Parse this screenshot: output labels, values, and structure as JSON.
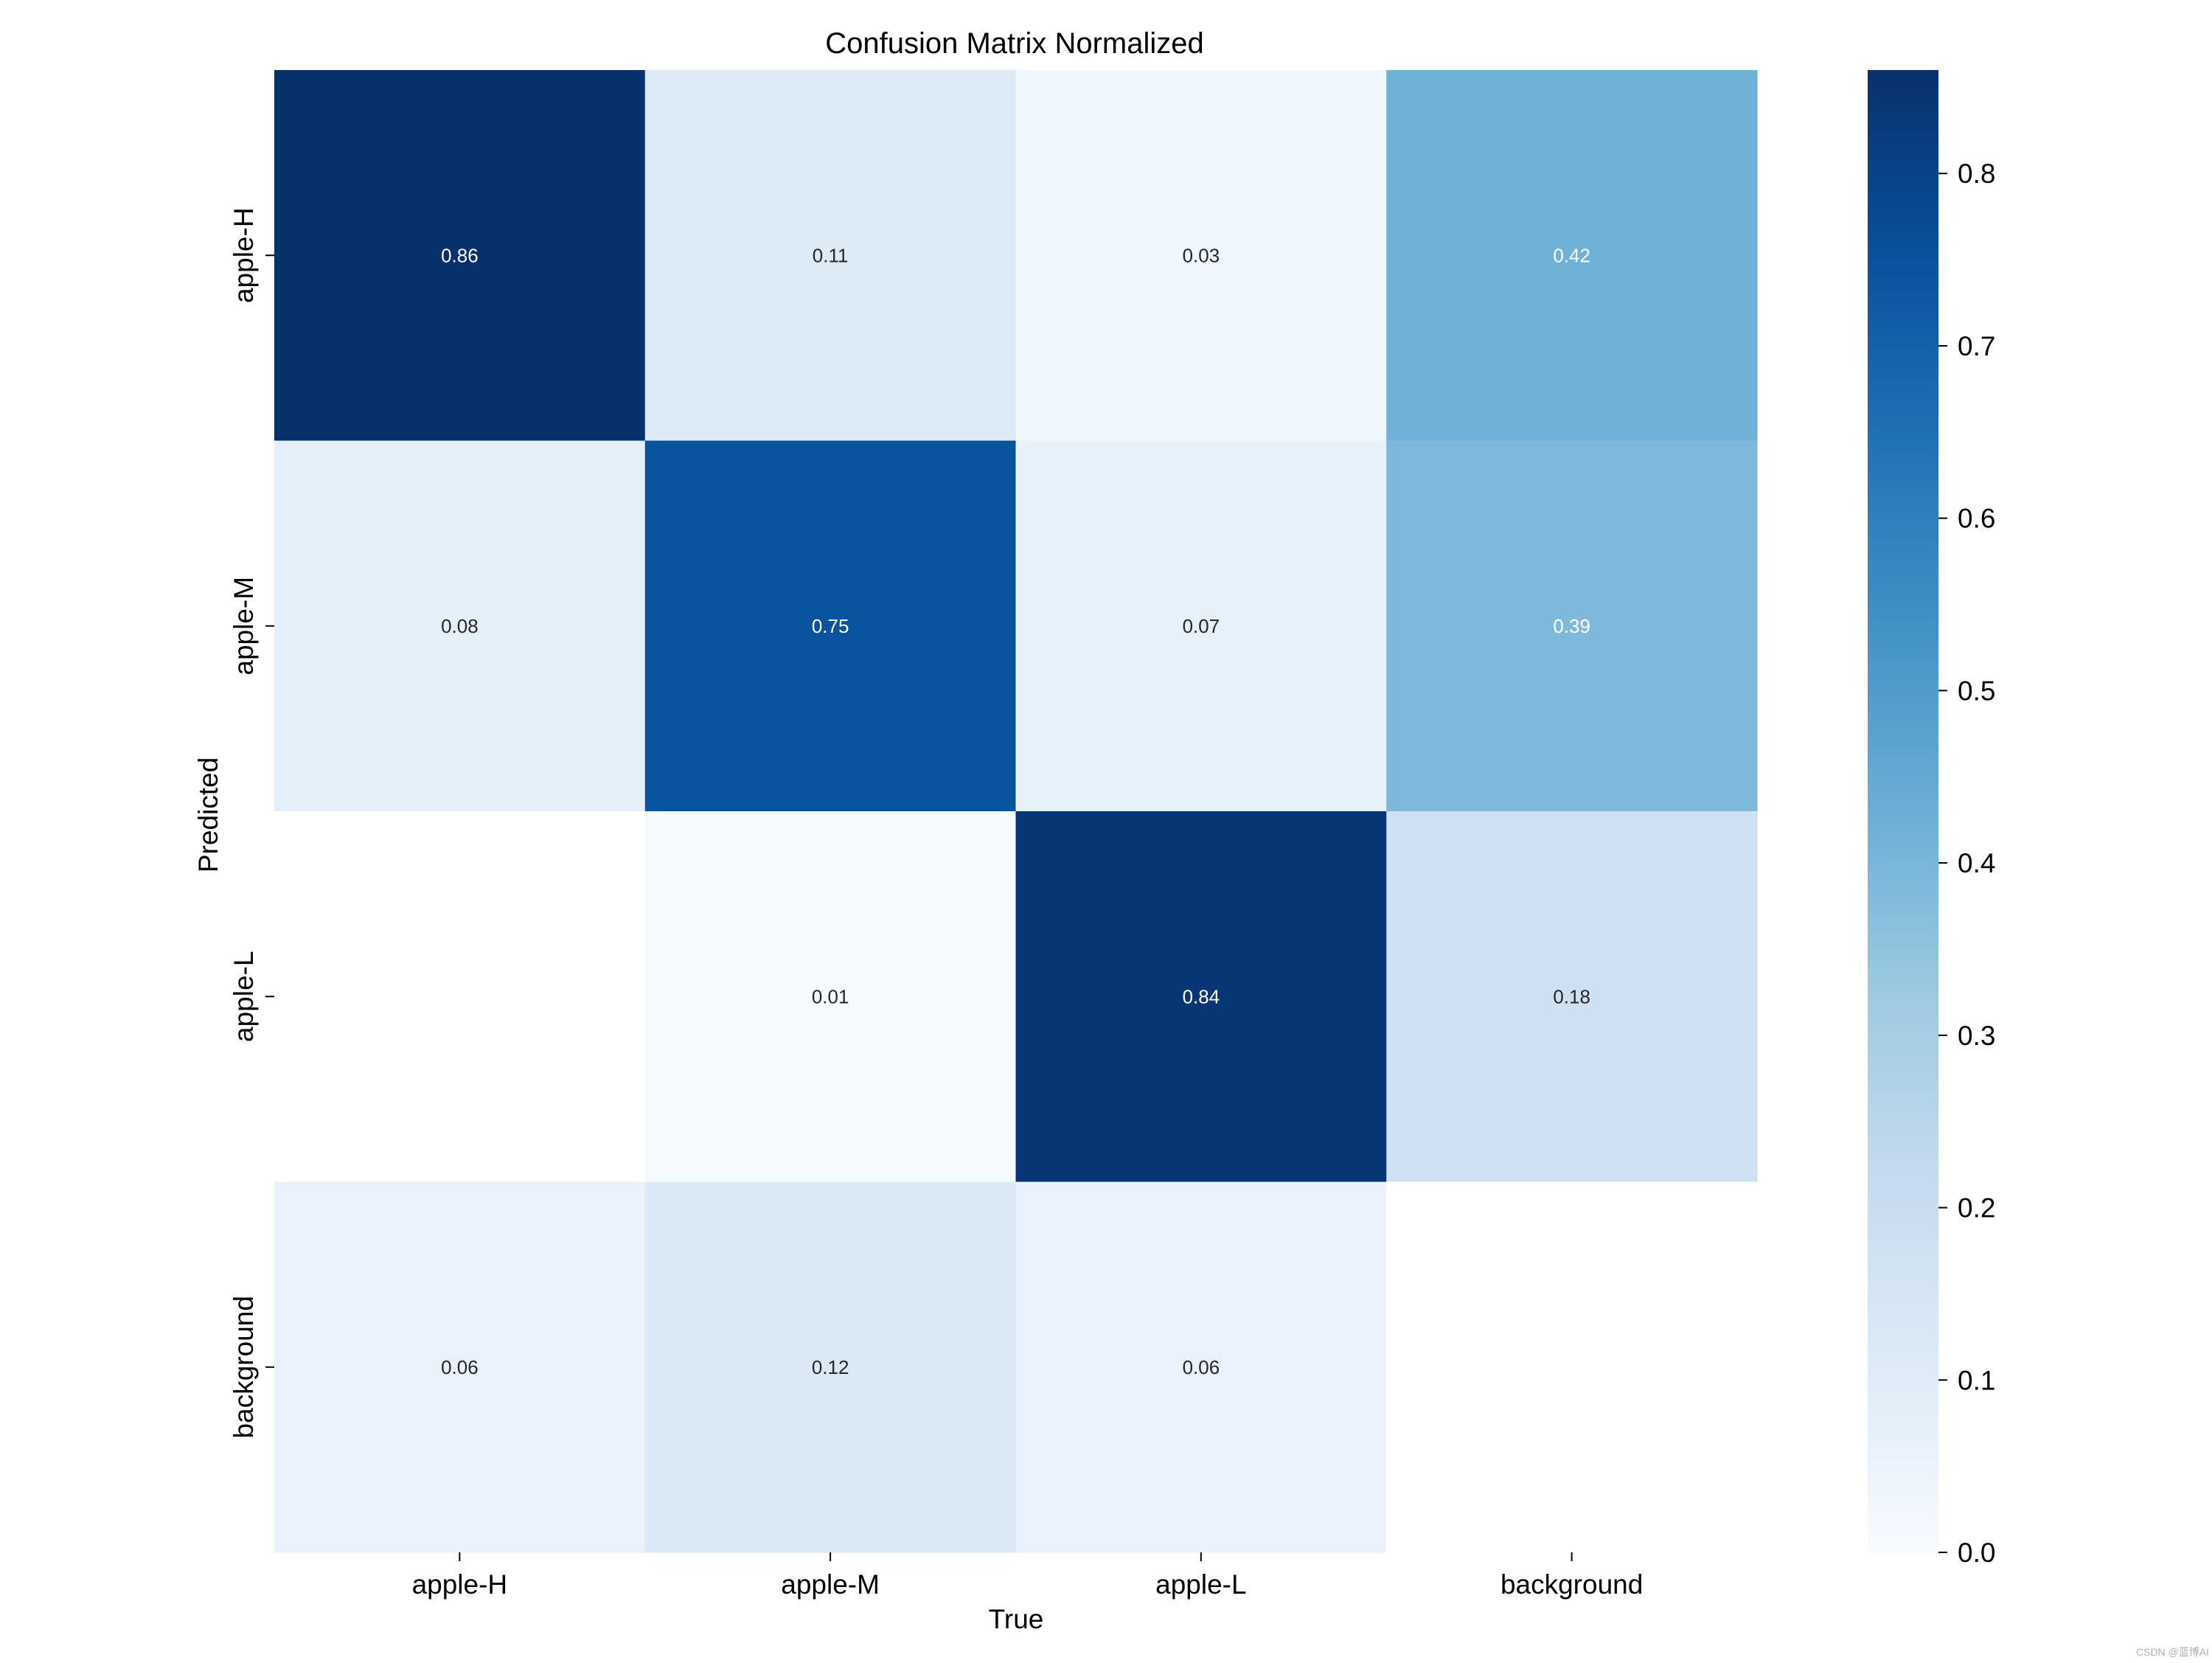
{
  "chart_data": {
    "type": "heatmap",
    "title": "Confusion Matrix Normalized",
    "xlabel": "True",
    "ylabel": "Predicted",
    "x_categories": [
      "apple-H",
      "apple-M",
      "apple-L",
      "background"
    ],
    "y_categories": [
      "apple-H",
      "apple-M",
      "apple-L",
      "background"
    ],
    "values": [
      [
        0.86,
        0.11,
        0.03,
        0.42
      ],
      [
        0.08,
        0.75,
        0.07,
        0.39
      ],
      [
        null,
        0.01,
        0.84,
        0.18
      ],
      [
        0.06,
        0.12,
        0.06,
        null
      ]
    ],
    "colorscale": "Blues",
    "colorbar": {
      "min": 0.0,
      "max": 0.86,
      "ticks": [
        0.0,
        0.1,
        0.2,
        0.3,
        0.4,
        0.5,
        0.6,
        0.7,
        0.8
      ],
      "tick_labels": [
        "0.0",
        "0.1",
        "0.2",
        "0.3",
        "0.4",
        "0.5",
        "0.6",
        "0.7",
        "0.8"
      ]
    },
    "grid": false
  },
  "watermark": "CSDN @蓝博AI"
}
